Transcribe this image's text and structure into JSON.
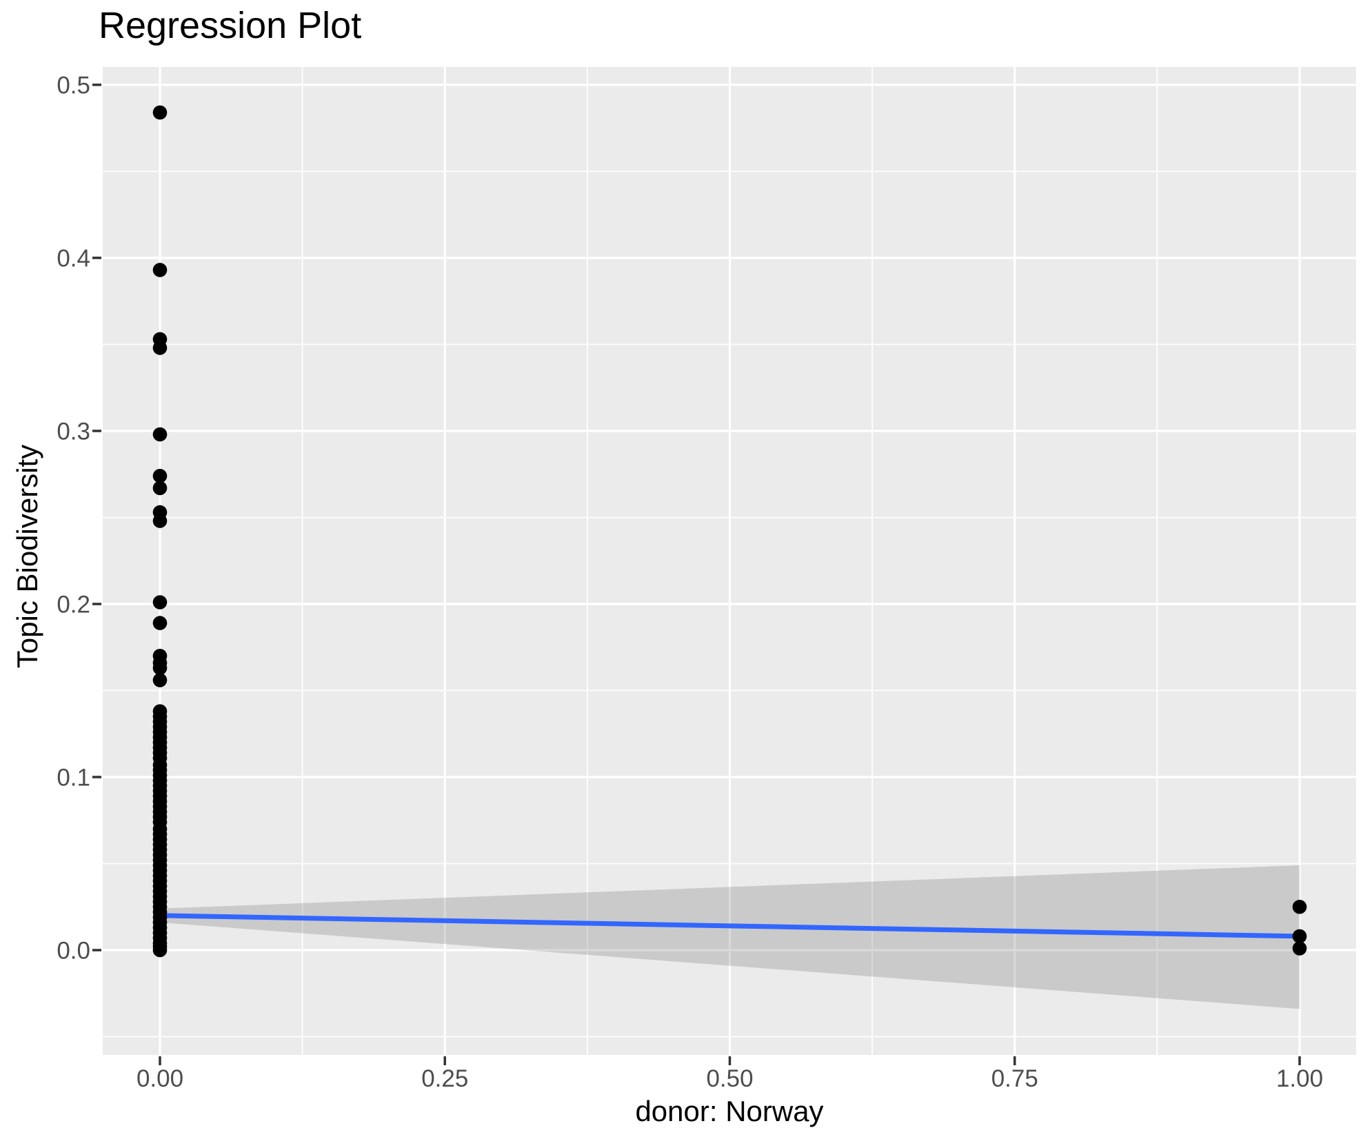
{
  "chart_data": {
    "type": "scatter",
    "title": "Regression Plot",
    "xlabel": "donor: Norway",
    "ylabel": "Topic Biodiversity",
    "xlim": [
      -0.05,
      1.05
    ],
    "ylim": [
      -0.061,
      0.511
    ],
    "grid": "major-and-minor",
    "legend": false,
    "colors": {
      "panel_background": "#EBEBEB",
      "gridline": "#FFFFFF",
      "tick_mark": "#333333",
      "tick_label": "#4D4D4D",
      "point": "#000000",
      "regression_line": "#3366FF",
      "confidence_band": "rgba(102,102,102,0.25)"
    },
    "x_ticks": {
      "values": [
        0,
        0.25,
        0.5,
        0.75,
        1
      ],
      "labels": [
        "0.00",
        "0.25",
        "0.50",
        "0.75",
        "1.00"
      ]
    },
    "y_ticks": {
      "values": [
        0,
        0.1,
        0.2,
        0.3,
        0.4,
        0.5
      ],
      "labels": [
        "0.0",
        "0.1",
        "0.2",
        "0.3",
        "0.4",
        "0.5"
      ]
    },
    "x_minor": [
      0.125,
      0.375,
      0.625,
      0.875
    ],
    "y_minor": [
      -0.05,
      0.05,
      0.15,
      0.25,
      0.35,
      0.45
    ],
    "series": [
      {
        "name": "observations at donor = 0",
        "x": 0,
        "y": [
          0.484,
          0.393,
          0.353,
          0.348,
          0.298,
          0.274,
          0.267,
          0.253,
          0.248,
          0.201,
          0.189,
          0.17,
          0.166,
          0.163,
          0.156,
          0.138,
          0.135,
          0.132,
          0.129,
          0.126,
          0.123,
          0.12,
          0.117,
          0.114,
          0.111,
          0.107,
          0.104,
          0.101,
          0.098,
          0.095,
          0.092,
          0.089,
          0.086,
          0.083,
          0.08,
          0.077,
          0.074,
          0.07,
          0.067,
          0.064,
          0.061,
          0.058,
          0.055,
          0.052,
          0.049,
          0.046,
          0.043,
          0.04,
          0.037,
          0.034,
          0.031,
          0.028,
          0.025,
          0.022,
          0.019,
          0.016,
          0.013,
          0.01,
          0.007,
          0.004,
          0.002,
          0.0
        ]
      },
      {
        "name": "observations at donor = 1",
        "x": 1,
        "y": [
          0.025,
          0.008,
          0.001
        ]
      }
    ],
    "regression": {
      "x": [
        0,
        1
      ],
      "y": [
        0.02,
        0.008
      ]
    },
    "confidence_band": {
      "x": [
        0,
        1
      ],
      "upper": [
        0.024,
        0.049
      ],
      "lower": [
        0.016,
        -0.034
      ]
    }
  }
}
